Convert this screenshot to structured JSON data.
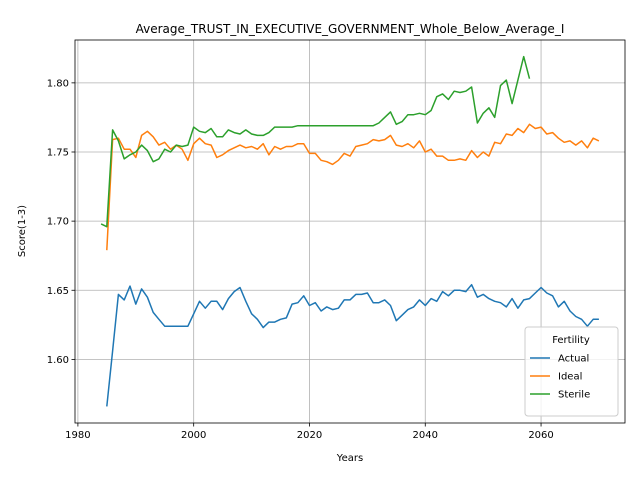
{
  "chart_data": {
    "type": "line",
    "title": "Average_TRUST_IN_EXECUTIVE_GOVERNMENT_Whole_Below_Average_I",
    "xlabel": "Years",
    "ylabel": "Score(1-3)",
    "xlim": [
      1979.5,
      2074.5
    ],
    "ylim": [
      1.554,
      1.831
    ],
    "xticks": [
      1980,
      2000,
      2020,
      2040,
      2060
    ],
    "yticks": [
      1.6,
      1.65,
      1.7,
      1.75,
      1.8
    ],
    "xtick_labels": [
      "1980",
      "2000",
      "2020",
      "2040",
      "2060"
    ],
    "ytick_labels": [
      "1.60",
      "1.65",
      "1.70",
      "1.75",
      "1.80"
    ],
    "grid": true,
    "legend": {
      "title": "Fertility",
      "placement": "lower right"
    },
    "series": [
      {
        "name": "Actual",
        "color": "#1f77b4",
        "x": [
          1985,
          1986,
          1987,
          1988,
          1989,
          1990,
          1991,
          1992,
          1993,
          1994,
          1995,
          1996,
          1997,
          1998,
          1999,
          2000,
          2001,
          2002,
          2003,
          2004,
          2005,
          2006,
          2007,
          2008,
          2009,
          2010,
          2011,
          2012,
          2013,
          2014,
          2015,
          2016,
          2017,
          2018,
          2019,
          2020,
          2021,
          2022,
          2023,
          2024,
          2025,
          2026,
          2027,
          2028,
          2029,
          2030,
          2031,
          2032,
          2033,
          2034,
          2035,
          2036,
          2037,
          2038,
          2039,
          2040,
          2041,
          2042,
          2043,
          2044,
          2045,
          2046,
          2047,
          2048,
          2049,
          2050,
          2051,
          2052,
          2053,
          2054,
          2055,
          2056,
          2057,
          2058,
          2059,
          2060,
          2061,
          2062,
          2063,
          2064,
          2065,
          2066,
          2067,
          2068,
          2069,
          2070
        ],
        "values": [
          1.566,
          1.606,
          1.647,
          1.643,
          1.653,
          1.64,
          1.651,
          1.645,
          1.634,
          1.629,
          1.624,
          1.624,
          1.624,
          1.624,
          1.624,
          1.633,
          1.642,
          1.637,
          1.642,
          1.642,
          1.636,
          1.644,
          1.649,
          1.652,
          1.642,
          1.633,
          1.629,
          1.623,
          1.627,
          1.627,
          1.629,
          1.63,
          1.64,
          1.641,
          1.646,
          1.639,
          1.641,
          1.635,
          1.638,
          1.636,
          1.637,
          1.643,
          1.643,
          1.647,
          1.647,
          1.648,
          1.641,
          1.641,
          1.643,
          1.639,
          1.628,
          1.632,
          1.636,
          1.638,
          1.643,
          1.639,
          1.644,
          1.642,
          1.649,
          1.646,
          1.65,
          1.65,
          1.649,
          1.654,
          1.645,
          1.647,
          1.644,
          1.642,
          1.641,
          1.638,
          1.644,
          1.637,
          1.643,
          1.644,
          1.648,
          1.652,
          1.648,
          1.646,
          1.638,
          1.642,
          1.635,
          1.631,
          1.629,
          1.624,
          1.629,
          1.629
        ]
      },
      {
        "name": "Ideal",
        "color": "#ff7f0e",
        "x": [
          1985,
          1986,
          1987,
          1988,
          1989,
          1990,
          1991,
          1992,
          1993,
          1994,
          1995,
          1996,
          1997,
          1998,
          1999,
          2000,
          2001,
          2002,
          2003,
          2004,
          2005,
          2006,
          2007,
          2008,
          2009,
          2010,
          2011,
          2012,
          2013,
          2014,
          2015,
          2016,
          2017,
          2018,
          2019,
          2020,
          2021,
          2022,
          2023,
          2024,
          2025,
          2026,
          2027,
          2028,
          2029,
          2030,
          2031,
          2032,
          2033,
          2034,
          2035,
          2036,
          2037,
          2038,
          2039,
          2040,
          2041,
          2042,
          2043,
          2044,
          2045,
          2046,
          2047,
          2048,
          2049,
          2050,
          2051,
          2052,
          2053,
          2054,
          2055,
          2056,
          2057,
          2058,
          2059,
          2060,
          2061,
          2062,
          2063,
          2064,
          2065,
          2066,
          2067,
          2068,
          2069,
          2070
        ],
        "values": [
          1.679,
          1.759,
          1.76,
          1.752,
          1.752,
          1.746,
          1.762,
          1.765,
          1.761,
          1.755,
          1.757,
          1.752,
          1.755,
          1.752,
          1.744,
          1.756,
          1.76,
          1.756,
          1.755,
          1.746,
          1.748,
          1.751,
          1.753,
          1.755,
          1.753,
          1.754,
          1.752,
          1.756,
          1.748,
          1.754,
          1.752,
          1.754,
          1.754,
          1.756,
          1.756,
          1.749,
          1.749,
          1.744,
          1.743,
          1.741,
          1.744,
          1.749,
          1.747,
          1.754,
          1.755,
          1.756,
          1.759,
          1.758,
          1.759,
          1.762,
          1.755,
          1.754,
          1.756,
          1.753,
          1.758,
          1.75,
          1.752,
          1.747,
          1.747,
          1.744,
          1.744,
          1.745,
          1.744,
          1.751,
          1.746,
          1.75,
          1.747,
          1.757,
          1.756,
          1.763,
          1.762,
          1.767,
          1.764,
          1.77,
          1.767,
          1.768,
          1.763,
          1.764,
          1.76,
          1.757,
          1.758,
          1.755,
          1.758,
          1.753,
          1.76,
          1.758
        ]
      },
      {
        "name": "Sterile",
        "color": "#2ca02c",
        "x": [
          1984,
          1985,
          1986,
          1987,
          1988,
          1989,
          1990,
          1991,
          1992,
          1993,
          1994,
          1995,
          1996,
          1997,
          1998,
          1999,
          2000,
          2001,
          2002,
          2003,
          2004,
          2005,
          2006,
          2007,
          2008,
          2009,
          2010,
          2011,
          2012,
          2013,
          2014,
          2015,
          2016,
          2017,
          2018,
          2019,
          2020,
          2021,
          2022,
          2023,
          2024,
          2025,
          2026,
          2027,
          2028,
          2029,
          2030,
          2031,
          2032,
          2033,
          2034,
          2035,
          2036,
          2037,
          2038,
          2039,
          2040,
          2041,
          2042,
          2043,
          2044,
          2045,
          2046,
          2047,
          2048,
          2049,
          2050,
          2051,
          2052,
          2053,
          2054,
          2055,
          2056,
          2057,
          2058
        ],
        "values": [
          1.698,
          1.696,
          1.766,
          1.758,
          1.745,
          1.748,
          1.75,
          1.755,
          1.751,
          1.743,
          1.745,
          1.752,
          1.75,
          1.755,
          1.754,
          1.755,
          1.768,
          1.765,
          1.764,
          1.767,
          1.761,
          1.761,
          1.766,
          1.764,
          1.763,
          1.766,
          1.763,
          1.762,
          1.762,
          1.764,
          1.768,
          1.768,
          1.768,
          1.768,
          1.769,
          1.769,
          1.769,
          1.769,
          1.769,
          1.769,
          1.769,
          1.769,
          1.769,
          1.769,
          1.769,
          1.769,
          1.769,
          1.769,
          1.771,
          1.775,
          1.779,
          1.77,
          1.772,
          1.777,
          1.777,
          1.778,
          1.777,
          1.78,
          1.79,
          1.792,
          1.788,
          1.794,
          1.793,
          1.794,
          1.797,
          1.771,
          1.778,
          1.782,
          1.775,
          1.798,
          1.802,
          1.785,
          1.802,
          1.819,
          1.803
        ]
      }
    ]
  }
}
